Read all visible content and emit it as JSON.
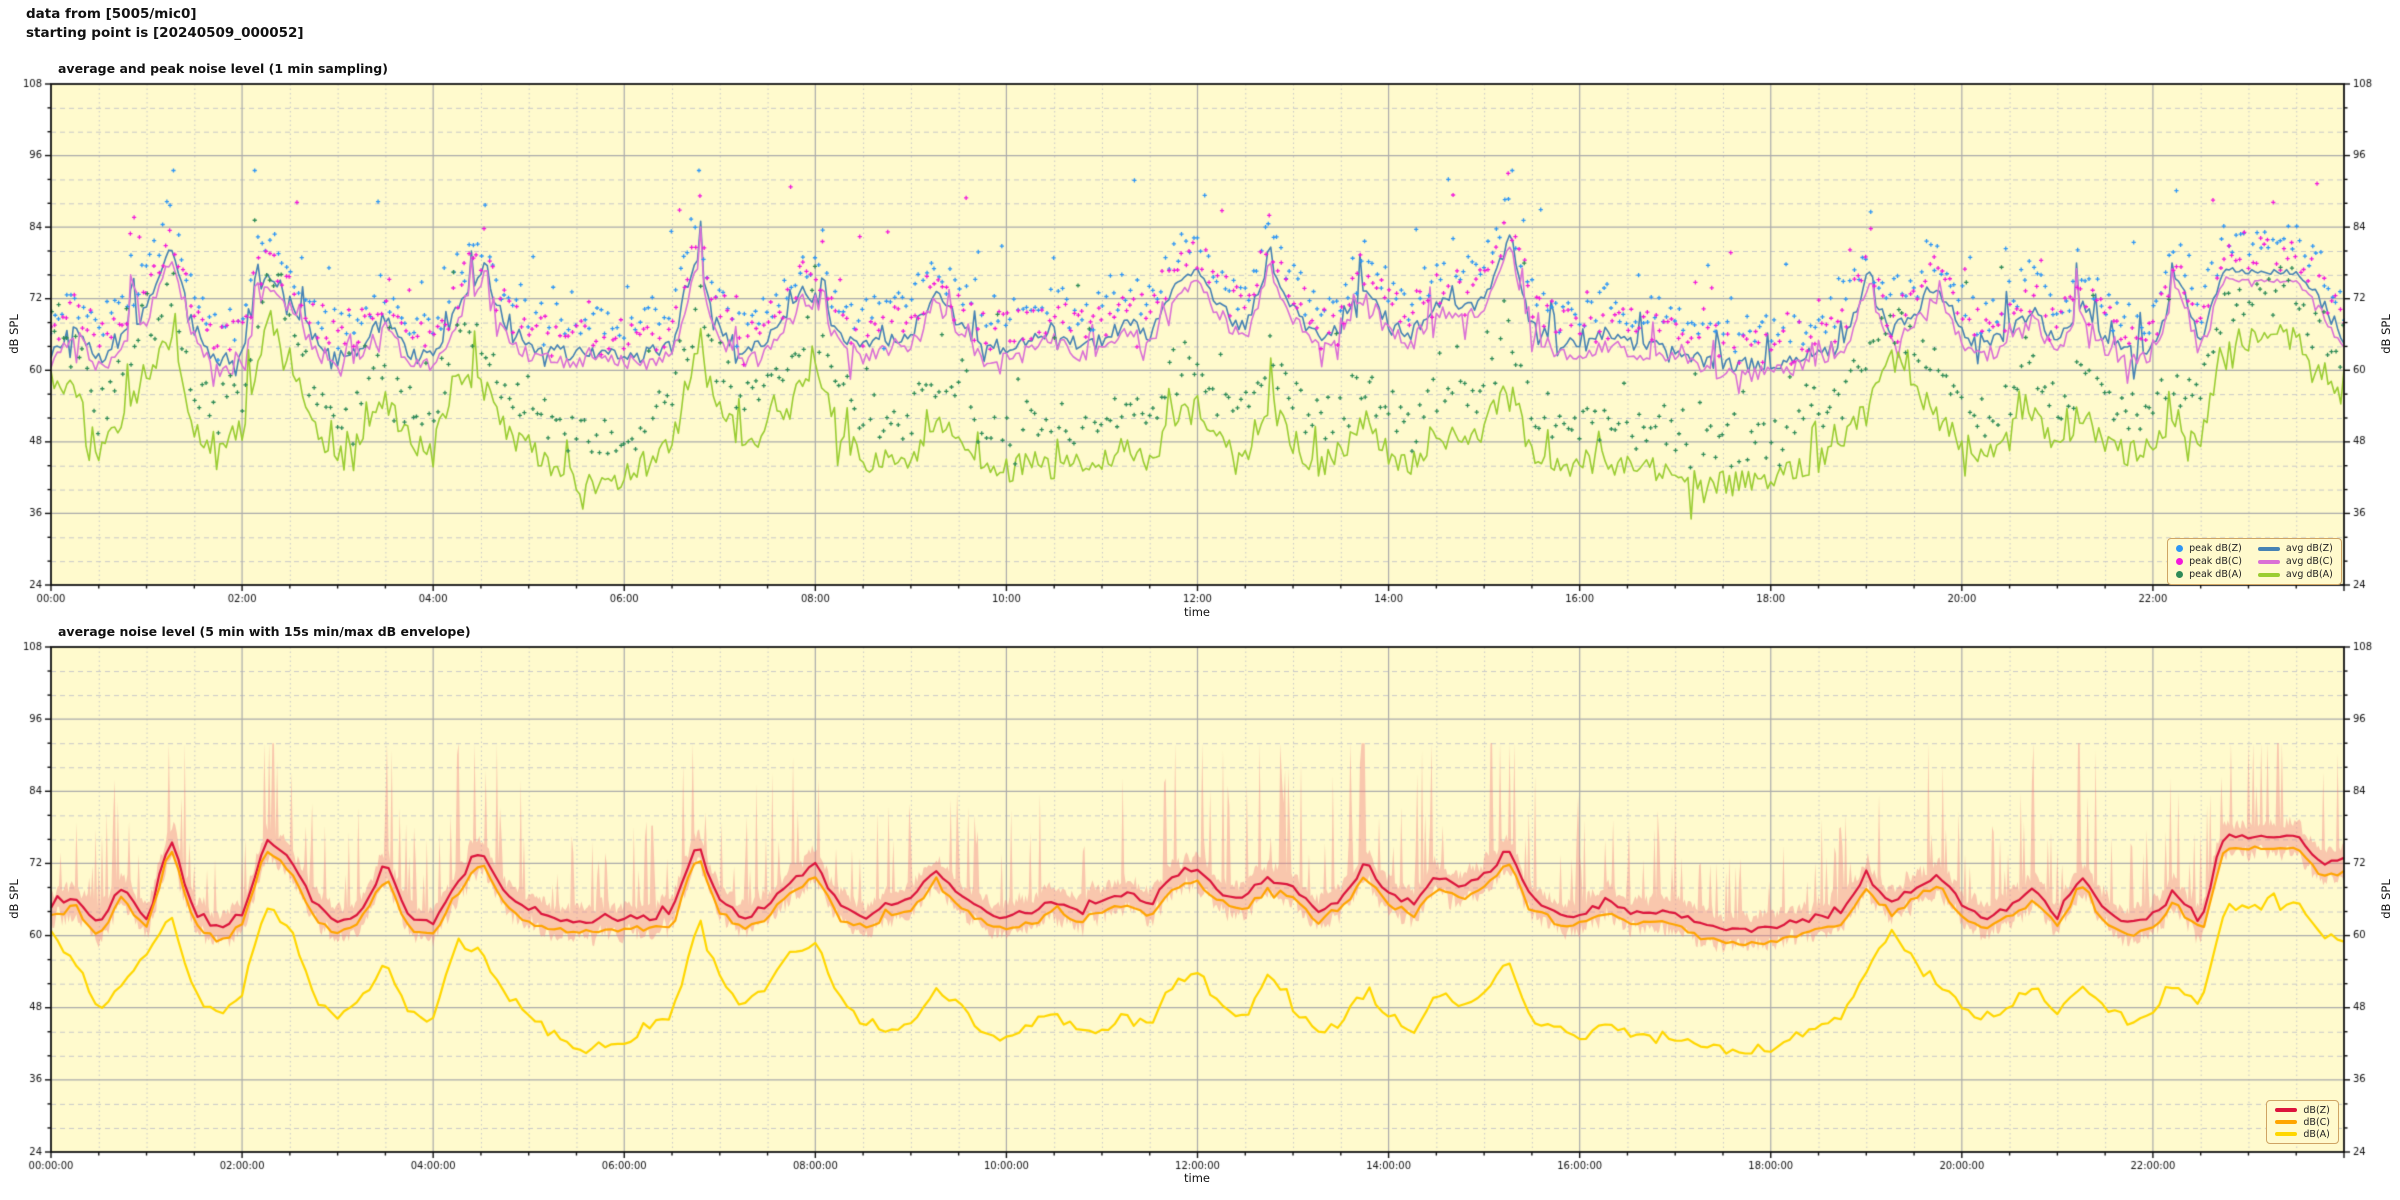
{
  "header": {
    "line1": "data from [5005/mic0]",
    "line2": "starting point is [20240509_000052]"
  },
  "figure": {
    "background": "#ffffff",
    "plot_background": "#FFFACD",
    "grid_major_color": "#ababab",
    "grid_minor_color": "#c9c9c9",
    "spine_color": "#111111",
    "tick_label_color": "#111111",
    "legend_border_color": "#CFA464"
  },
  "chart_data": [
    {
      "type": "line",
      "title": "average and peak noise level (1 min sampling)",
      "xlabel": "time",
      "ylabel": "dB SPL",
      "ylabel_right": "dB SPL",
      "ylim": [
        24,
        108
      ],
      "yticks": [
        24,
        36,
        48,
        60,
        72,
        84,
        96,
        108
      ],
      "ytick_minor_step": 4,
      "xlim_hours": [
        0,
        24
      ],
      "xtick_hours": [
        0,
        2,
        4,
        6,
        8,
        10,
        12,
        14,
        16,
        18,
        20,
        22
      ],
      "xtick_labels": [
        "00:00",
        "02:00",
        "04:00",
        "06:00",
        "08:00",
        "10:00",
        "12:00",
        "14:00",
        "16:00",
        "18:00",
        "20:00",
        "22:00"
      ],
      "xtick_minor_step_hours": 0.5,
      "grid": {
        "major": true,
        "minor": true
      },
      "legend_order_note": "two columns: peaks (dot markers) left, averages (line markers) right",
      "legend": [
        {
          "label": "peak dB(Z)",
          "marker": "dot",
          "color": "#2E96F5"
        },
        {
          "label": "peak dB(C)",
          "marker": "dot",
          "color": "#F318DB"
        },
        {
          "label": "peak dB(A)",
          "marker": "dot",
          "color": "#2E8B57"
        },
        {
          "label": "avg dB(Z)",
          "marker": "line",
          "color": "#4682B4"
        },
        {
          "label": "avg dB(C)",
          "marker": "line",
          "color": "#DA70D6"
        },
        {
          "label": "avg dB(A)",
          "marker": "line",
          "color": "#9ACD32"
        }
      ],
      "sample_step_hours": 0.25,
      "series": [
        {
          "name": "avg dB(Z)",
          "kind": "line",
          "color": "#4682B4",
          "width": 1.6,
          "seed": 101,
          "noise": {
            "amp": 1.3,
            "up_p": 0.06,
            "up_amp": 5.5,
            "dn_p": 0.05,
            "dn_amp": 3.5
          },
          "spikes": [
            [
              0.85,
              84
            ],
            [
              2.15,
              80
            ],
            [
              4.4,
              80
            ],
            [
              4.55,
              81
            ],
            [
              6.8,
              85
            ],
            [
              7.85,
              76
            ],
            [
              8.08,
              79
            ],
            [
              12.75,
              82
            ],
            [
              15.28,
              84
            ],
            [
              19.05,
              79
            ],
            [
              21.2,
              78
            ],
            [
              22.2,
              78
            ]
          ],
          "values": [
            63,
            68,
            62,
            65,
            70,
            81,
            67,
            61,
            63,
            76,
            72,
            66,
            62,
            64,
            69,
            63,
            62,
            70,
            76,
            68,
            64,
            63,
            63,
            63,
            63,
            63,
            64,
            79,
            67,
            63,
            65,
            70,
            73,
            66,
            64,
            65,
            66,
            73,
            68,
            64,
            64,
            65,
            67,
            64,
            65,
            68,
            66,
            74,
            77,
            70,
            67,
            78,
            70,
            66,
            67,
            74,
            68,
            66,
            72,
            70,
            72,
            82,
            68,
            65,
            64,
            66,
            65,
            64,
            64,
            62,
            61,
            61,
            61,
            62,
            63,
            64,
            75,
            66,
            70,
            74,
            66,
            64,
            66,
            70,
            64,
            72,
            65,
            63,
            64,
            76,
            65,
            77,
            76.5,
            76.5,
            76.5,
            72,
            65
          ]
        },
        {
          "name": "avg dB(C)",
          "kind": "line",
          "color": "#DA70D6",
          "width": 1.6,
          "seed": 202,
          "noise": {
            "amp": 1.3,
            "up_p": 0.06,
            "up_amp": 5.0,
            "dn_p": 0.06,
            "dn_amp": 3.5
          },
          "derive": {
            "from": "avg dB(Z)",
            "offset": -1.6
          },
          "spikes": [
            [
              0.85,
              83
            ],
            [
              2.15,
              79
            ],
            [
              4.4,
              79
            ],
            [
              4.55,
              80
            ],
            [
              6.8,
              84
            ],
            [
              7.85,
              75
            ],
            [
              8.08,
              78
            ],
            [
              12.75,
              80
            ],
            [
              15.28,
              82
            ],
            [
              19.05,
              78
            ],
            [
              21.2,
              77
            ],
            [
              22.2,
              77
            ]
          ]
        },
        {
          "name": "avg dB(A)",
          "kind": "line",
          "color": "#9ACD32",
          "width": 1.6,
          "seed": 303,
          "noise": {
            "amp": 2.2,
            "up_p": 0.07,
            "up_amp": 7,
            "dn_p": 0.07,
            "dn_amp": 5
          },
          "spikes": [
            [
              2.3,
              70
            ],
            [
              6.8,
              67
            ],
            [
              19.25,
              64
            ]
          ],
          "values": [
            58,
            56,
            47,
            52,
            57,
            66,
            50,
            47,
            50,
            68,
            62,
            50,
            46,
            50,
            55,
            48,
            46,
            60,
            58,
            50,
            47,
            44,
            41,
            41,
            42,
            45,
            47,
            64,
            53,
            48,
            52,
            57,
            60,
            50,
            45,
            44,
            45,
            52,
            48,
            44,
            43,
            45,
            47,
            44,
            44,
            47,
            45,
            52,
            55,
            48,
            46,
            55,
            48,
            44,
            46,
            52,
            46,
            44,
            50,
            48,
            50,
            58,
            46,
            44,
            43,
            45,
            44,
            43,
            43,
            42,
            41,
            41,
            41,
            43,
            45,
            47,
            55,
            63,
            57,
            52,
            48,
            46,
            48,
            52,
            47,
            53,
            48,
            46,
            47,
            52,
            48,
            65,
            65,
            65,
            66,
            60,
            56
          ]
        },
        {
          "name": "peak dB(Z)",
          "kind": "scatter",
          "color": "#2E96F5",
          "seed": 404,
          "base": "avg dB(Z)",
          "scatter": {
            "step_min": 2.5,
            "off": 2.5,
            "spread": 5.5,
            "out_p": 0.05,
            "out_amp": 14,
            "cap": 93.5
          }
        },
        {
          "name": "peak dB(C)",
          "kind": "scatter",
          "color": "#F318DB",
          "seed": 505,
          "base": "avg dB(C)",
          "scatter": {
            "step_min": 2.5,
            "off": 1.8,
            "spread": 5.5,
            "out_p": 0.05,
            "out_amp": 14,
            "cap": 93
          }
        },
        {
          "name": "peak dB(A)",
          "kind": "scatter",
          "color": "#2E8B57",
          "seed": 606,
          "base": "avg dB(A)",
          "scatter": {
            "step_min": 2.5,
            "off": 4,
            "spread": 6,
            "out_p": 0.05,
            "out_amp": 18,
            "cap": 88
          }
        }
      ]
    },
    {
      "type": "line",
      "title": "average noise level (5 min with 15s min/max dB envelope)",
      "xlabel": "time",
      "ylabel": "dB SPL",
      "ylabel_right": "dB SPL",
      "ylim": [
        24,
        108
      ],
      "yticks": [
        24,
        36,
        48,
        60,
        72,
        84,
        96,
        108
      ],
      "ytick_minor_step": 4,
      "xlim_hours": [
        0,
        24
      ],
      "xtick_hours": [
        0,
        2,
        4,
        6,
        8,
        10,
        12,
        14,
        16,
        18,
        20,
        22
      ],
      "xtick_labels": [
        "00:00:00",
        "02:00:00",
        "04:00:00",
        "06:00:00",
        "08:00:00",
        "10:00:00",
        "12:00:00",
        "14:00:00",
        "16:00:00",
        "18:00:00",
        "20:00:00",
        "22:00:00"
      ],
      "xtick_minor_step_hours": 0.5,
      "grid": {
        "major": true,
        "minor": true
      },
      "legend": [
        {
          "label": "dB(Z)",
          "marker": "line",
          "color": "#DC143C"
        },
        {
          "label": "dB(C)",
          "marker": "line",
          "color": "#FFA500"
        },
        {
          "label": "dB(A)",
          "marker": "line",
          "color": "#FFD700"
        }
      ],
      "envelope": {
        "applies_to": "dB(Z)",
        "color": "#F08080",
        "alpha": 0.42,
        "up_base": 1.2,
        "up_rand": 2,
        "spike_p": 0.18,
        "spike_base": 4,
        "spike_act": 2.2,
        "act_ref": 61,
        "dn_base": 1.5,
        "dn_rand": 2.5,
        "cap": 92,
        "seed": 909
      },
      "sample_step_hours": 0.25,
      "series": [
        {
          "name": "dB(Z)",
          "kind": "line",
          "color": "#DC143C",
          "width": 2.2,
          "seed": 707,
          "smooth": 3,
          "draw_step_min": 4,
          "noise": {
            "amp": 0.7,
            "up_p": 0.04,
            "up_amp": 2.5,
            "dn_p": 0.04,
            "dn_amp": 1.5
          },
          "spikes": [
            [
              1.3,
              77
            ],
            [
              6.8,
              75
            ],
            [
              15.28,
              74
            ],
            [
              22.2,
              68
            ]
          ],
          "values": [
            65,
            66,
            62,
            68,
            63,
            76,
            64,
            61,
            63,
            76,
            73,
            65,
            62,
            64,
            72,
            63,
            62,
            69,
            74,
            67,
            64,
            63,
            62.5,
            62.5,
            63,
            63,
            64,
            75,
            66,
            63,
            65,
            69,
            72,
            65,
            63,
            65,
            66,
            71,
            67,
            64,
            63,
            64,
            66,
            64,
            66,
            67,
            65,
            70,
            71,
            67,
            66,
            70,
            68,
            64,
            66,
            72,
            67,
            65,
            70,
            68,
            70,
            74,
            66,
            64,
            63,
            66,
            64,
            64,
            64,
            62,
            61,
            61,
            61,
            62,
            63,
            64,
            70,
            65,
            68,
            70,
            65,
            63,
            65,
            68,
            63,
            70,
            64,
            62,
            63,
            67,
            62,
            76.5,
            76.3,
            76.4,
            76.6,
            72,
            72.5
          ]
        },
        {
          "name": "dB(C)",
          "kind": "line",
          "color": "#FFA500",
          "width": 2.2,
          "seed": 808,
          "smooth": 3,
          "draw_step_min": 4,
          "noise": {
            "amp": 0.7,
            "up_p": 0.04,
            "up_amp": 2.5,
            "dn_p": 0.04,
            "dn_amp": 1.5
          },
          "derive": {
            "from": "dB(Z)",
            "offset": -1.9
          },
          "spikes": [
            [
              1.3,
              75
            ],
            [
              6.8,
              73
            ],
            [
              15.28,
              72
            ],
            [
              22.2,
              66
            ]
          ]
        },
        {
          "name": "dB(A)",
          "kind": "line",
          "color": "#FFD700",
          "width": 2.2,
          "seed": 900,
          "smooth": 3,
          "draw_step_min": 4,
          "noise": {
            "amp": 1.0,
            "up_p": 0.05,
            "up_amp": 3,
            "dn_p": 0.05,
            "dn_amp": 2.5
          },
          "spikes": [
            [
              2.3,
              66
            ],
            [
              6.8,
              64
            ]
          ],
          "values": [
            60,
            56,
            47,
            52,
            57,
            64,
            50,
            47,
            50,
            65,
            61,
            50,
            46,
            50,
            55,
            48,
            46,
            59,
            57,
            50,
            47,
            44,
            41,
            41,
            42,
            45,
            47,
            61,
            53,
            48,
            52,
            57,
            59,
            50,
            45,
            44,
            45,
            51,
            48,
            44,
            43,
            45,
            47,
            44,
            44,
            47,
            45,
            51,
            54,
            48,
            46,
            54,
            48,
            44,
            46,
            51,
            46,
            44,
            50,
            48,
            50,
            56,
            46,
            44,
            43,
            45,
            44,
            43,
            43,
            42,
            41,
            41,
            41,
            43,
            45,
            47,
            54,
            61,
            56,
            52,
            48,
            46,
            48,
            52,
            47,
            52,
            48,
            46,
            47,
            52,
            48,
            64.5,
            64.5,
            64.5,
            66,
            61,
            59.5
          ]
        }
      ]
    }
  ]
}
